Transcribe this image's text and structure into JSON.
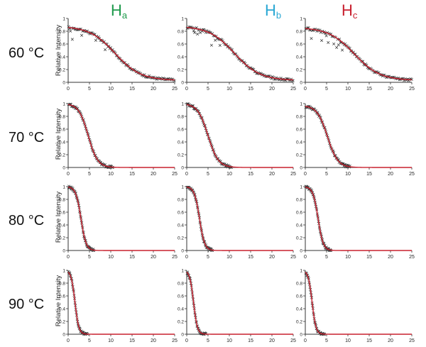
{
  "column_headers": [
    {
      "main": "H",
      "sub": "a",
      "color": "#1f9a4c"
    },
    {
      "main": "H",
      "sub": "b",
      "color": "#2aa8d4"
    },
    {
      "main": "H",
      "sub": "c",
      "color": "#c8202f"
    }
  ],
  "row_labels": [
    "60 °C",
    "70 °C",
    "80 °C",
    "90 °C"
  ],
  "ylabel": "Relative Intensity",
  "colors": {
    "data_marker": "#333333",
    "fit_line": "#c8202f",
    "axis": "#333333"
  },
  "chart_data": {
    "type": "scatter",
    "layout": "grid 4x3 of small multiples (rows: temperature, columns: site)",
    "xlim": [
      0,
      25
    ],
    "ylim": [
      0,
      1
    ],
    "xticks": [
      "0",
      "5",
      "10",
      "15",
      "20",
      "25"
    ],
    "yticks": [
      "0",
      "0.2",
      "0.4",
      "0.6",
      "0.8",
      "1"
    ],
    "markers": "x",
    "fit_line": "red curve",
    "panels": [
      {
        "row": "60 °C",
        "column": "Ha",
        "fit": {
          "plateau": 0.88,
          "midpoint": 11.0,
          "width": 3.0,
          "tail": 0.03
        },
        "data_extent": 25,
        "scatter_noise": true
      },
      {
        "row": "60 °C",
        "column": "Hb",
        "fit": {
          "plateau": 0.88,
          "midpoint": 11.2,
          "width": 3.0,
          "tail": 0.03
        },
        "data_extent": 25,
        "scatter_noise": true
      },
      {
        "row": "60 °C",
        "column": "Hc",
        "fit": {
          "plateau": 0.86,
          "midpoint": 11.5,
          "width": 3.0,
          "tail": 0.03
        },
        "data_extent": 25,
        "scatter_noise": true
      },
      {
        "row": "70 °C",
        "column": "Ha",
        "fit": {
          "plateau": 1.0,
          "midpoint": 4.7,
          "width": 1.1,
          "tail": 0.0
        },
        "data_extent": 10.5,
        "scatter_noise": false
      },
      {
        "row": "70 °C",
        "column": "Hb",
        "fit": {
          "plateau": 1.0,
          "midpoint": 5.0,
          "width": 1.2,
          "tail": 0.0
        },
        "data_extent": 10.5,
        "scatter_noise": false
      },
      {
        "row": "70 °C",
        "column": "Hc",
        "fit": {
          "plateau": 0.97,
          "midpoint": 5.2,
          "width": 1.2,
          "tail": 0.0
        },
        "data_extent": 10.5,
        "scatter_noise": false
      },
      {
        "row": "80 °C",
        "column": "Ha",
        "fit": {
          "plateau": 1.0,
          "midpoint": 3.0,
          "width": 0.6,
          "tail": 0.0
        },
        "data_extent": 6,
        "scatter_noise": false
      },
      {
        "row": "80 °C",
        "column": "Hb",
        "fit": {
          "plateau": 1.0,
          "midpoint": 3.0,
          "width": 0.6,
          "tail": 0.0
        },
        "data_extent": 6,
        "scatter_noise": false
      },
      {
        "row": "80 °C",
        "column": "Hc",
        "fit": {
          "plateau": 1.0,
          "midpoint": 3.0,
          "width": 0.6,
          "tail": 0.0
        },
        "data_extent": 6,
        "scatter_noise": false
      },
      {
        "row": "90 °C",
        "column": "Ha",
        "fit": {
          "plateau": 1.0,
          "midpoint": 1.6,
          "width": 0.45,
          "tail": 0.0
        },
        "data_extent": 4.5,
        "scatter_noise": false
      },
      {
        "row": "90 °C",
        "column": "Hb",
        "fit": {
          "plateau": 1.0,
          "midpoint": 1.6,
          "width": 0.45,
          "tail": 0.0
        },
        "data_extent": 4.5,
        "scatter_noise": false
      },
      {
        "row": "90 °C",
        "column": "Hc",
        "fit": {
          "plateau": 1.0,
          "midpoint": 1.6,
          "width": 0.45,
          "tail": 0.0
        },
        "data_extent": 4.5,
        "scatter_noise": false
      }
    ]
  }
}
